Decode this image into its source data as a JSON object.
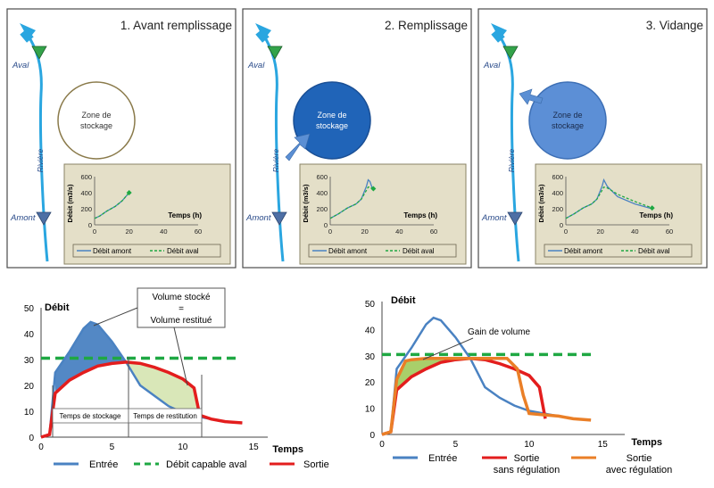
{
  "colors": {
    "river": "#2aa6e0",
    "panel_border": "#4b4b4b",
    "inset_bg": "#e4dfc8",
    "inset_border": "#8a8366",
    "amont_marker": "#4d6fa5",
    "aval_marker": "#33a34a",
    "entree": "#4a82c2",
    "sortie": "#e31d1d",
    "sortie_regulation": "#ea7f27",
    "capable_aval": "#1fa843",
    "fill_blue": "#4a82c2",
    "fill_green": "#a9cf6a",
    "fill_lightgreen": "#d9e7b8",
    "zone_filled": "#2064b8",
    "zone_emptying": "#5c8fd6"
  },
  "panels": [
    {
      "title": "1. Avant remplissage",
      "aval_label": "Aval",
      "amont_label": "Amont",
      "river_label": "Rivière",
      "zone_label": "Zone de stockage",
      "zone_state": "empty",
      "arrow_to_zone": "none",
      "inset": {
        "ylabel": "Débit (m3/s)",
        "xlabel": "Temps (h)",
        "yticks": [
          "0",
          "200",
          "400",
          "600"
        ],
        "xticks": [
          "0",
          "20",
          "40",
          "60"
        ],
        "legend": [
          "Débit amont",
          "Débit aval"
        ]
      }
    },
    {
      "title": "2. Remplissage",
      "aval_label": "Aval",
      "amont_label": "Amont",
      "river_label": "Rivière",
      "zone_label": "Zone de stockage",
      "zone_state": "full",
      "arrow_to_zone": "in",
      "inset": {
        "ylabel": "Débit (m3/s)",
        "xlabel": "Temps (h)",
        "yticks": [
          "0",
          "200",
          "400",
          "600"
        ],
        "xticks": [
          "0",
          "20",
          "40",
          "60"
        ],
        "legend": [
          "Débit amont",
          "Débit aval"
        ]
      }
    },
    {
      "title": "3. Vidange",
      "aval_label": "Aval",
      "amont_label": "Amont",
      "river_label": "Rivière",
      "zone_label": "Zone de stockage",
      "zone_state": "emptying",
      "arrow_to_zone": "out",
      "inset": {
        "ylabel": "Débit (m3/s)",
        "xlabel": "Temps (h)",
        "yticks": [
          "0",
          "200",
          "400",
          "600"
        ],
        "xticks": [
          "0",
          "20",
          "40",
          "60"
        ],
        "legend": [
          "Débit amont",
          "Débit aval"
        ]
      }
    }
  ],
  "bottom_left": {
    "ylabel": "Débit",
    "xlabel": "Temps",
    "yticks": [
      "0",
      "10",
      "20",
      "30",
      "40",
      "50"
    ],
    "xticks": [
      "0",
      "5",
      "10",
      "15"
    ],
    "callout_line1": "Volume stocké",
    "callout_line2": "=",
    "callout_line3": "Volume restitué",
    "stockage_label": "Temps de stockage",
    "restitution_label": "Temps de restitution",
    "legend": [
      "Entrée",
      "Débit capable aval",
      "Sortie"
    ]
  },
  "bottom_right": {
    "ylabel": "Débit",
    "xlabel": "Temps",
    "yticks": [
      "0",
      "10",
      "20",
      "30",
      "40",
      "50"
    ],
    "xticks": [
      "0",
      "5",
      "10",
      "15"
    ],
    "gain_label": "Gain de volume",
    "legend": [
      {
        "line1": "Entrée",
        "line2": ""
      },
      {
        "line1": "Sortie",
        "line2": "sans régulation"
      },
      {
        "line1": "Sortie",
        "line2": "avec régulation"
      }
    ]
  },
  "chart_data": [
    {
      "type": "line",
      "panel": "1. Avant remplissage",
      "xlabel": "Temps (h)",
      "ylabel": "Débit (m3/s)",
      "xlim": [
        0,
        60
      ],
      "ylim": [
        0,
        600
      ],
      "series": [
        {
          "name": "Débit amont",
          "x": [
            0,
            3,
            7,
            12,
            16,
            20
          ],
          "y": [
            80,
            110,
            170,
            230,
            300,
            400
          ]
        },
        {
          "name": "Débit aval",
          "x": [
            0,
            3,
            7,
            12,
            16,
            20
          ],
          "y": [
            80,
            110,
            170,
            230,
            300,
            400
          ]
        }
      ]
    },
    {
      "type": "line",
      "panel": "2. Remplissage",
      "xlabel": "Temps (h)",
      "ylabel": "Débit (m3/s)",
      "xlim": [
        0,
        60
      ],
      "ylim": [
        0,
        600
      ],
      "series": [
        {
          "name": "Débit amont",
          "x": [
            0,
            5,
            10,
            15,
            18,
            21,
            22,
            23,
            24,
            25
          ],
          "y": [
            80,
            140,
            210,
            260,
            320,
            480,
            560,
            540,
            480,
            440
          ]
        },
        {
          "name": "Débit aval",
          "x": [
            0,
            5,
            10,
            15,
            18,
            21,
            22,
            23,
            24,
            25
          ],
          "y": [
            80,
            140,
            210,
            260,
            320,
            430,
            470,
            470,
            460,
            450
          ]
        }
      ]
    },
    {
      "type": "line",
      "panel": "3. Vidange",
      "xlabel": "Temps (h)",
      "ylabel": "Débit (m3/s)",
      "xlim": [
        0,
        60
      ],
      "ylim": [
        0,
        600
      ],
      "series": [
        {
          "name": "Débit amont",
          "x": [
            0,
            5,
            10,
            15,
            18,
            21,
            22,
            24,
            30,
            40,
            50
          ],
          "y": [
            80,
            140,
            210,
            260,
            320,
            480,
            560,
            480,
            350,
            260,
            200
          ]
        },
        {
          "name": "Débit aval",
          "x": [
            0,
            5,
            10,
            15,
            18,
            21,
            22,
            24,
            30,
            40,
            50
          ],
          "y": [
            80,
            140,
            210,
            260,
            320,
            430,
            470,
            460,
            380,
            290,
            210
          ]
        }
      ]
    },
    {
      "type": "line",
      "panel": "bottom-left",
      "xlabel": "Temps",
      "ylabel": "Débit",
      "xlim": [
        0,
        15
      ],
      "ylim": [
        0,
        50
      ],
      "series": [
        {
          "name": "Entrée",
          "x": [
            0,
            0.6,
            1,
            2,
            3,
            3.5,
            4,
            5,
            6,
            7,
            8,
            9,
            10,
            11,
            12,
            13,
            14.2
          ],
          "y": [
            0,
            1,
            25,
            33,
            42,
            44.5,
            43.5,
            37,
            29,
            20,
            16,
            12,
            9.5,
            8,
            7,
            6,
            5.5
          ]
        },
        {
          "name": "Débit capable aval",
          "x": [
            0,
            14
          ],
          "y": [
            30.5,
            30.5
          ]
        },
        {
          "name": "Sortie",
          "x": [
            0,
            0.6,
            1,
            2,
            3,
            4,
            5,
            6,
            7,
            8,
            9,
            10,
            10.8,
            11.2,
            12,
            13,
            14.2
          ],
          "y": [
            0,
            1,
            17,
            22,
            25,
            27.5,
            28.5,
            29,
            28.5,
            27,
            25,
            22.5,
            19,
            8.5,
            7,
            6,
            5.5
          ]
        }
      ]
    },
    {
      "type": "line",
      "panel": "bottom-right",
      "xlabel": "Temps",
      "ylabel": "Débit",
      "xlim": [
        0,
        15
      ],
      "ylim": [
        0,
        50
      ],
      "series": [
        {
          "name": "Entrée",
          "x": [
            0,
            0.6,
            1,
            2,
            3,
            3.5,
            4,
            5,
            6,
            7,
            8,
            9,
            10,
            11,
            12,
            13,
            14.2
          ],
          "y": [
            0,
            1,
            25,
            33,
            42,
            44.5,
            43.5,
            37,
            29,
            18,
            14,
            11,
            9,
            8,
            7,
            6,
            5.5
          ]
        },
        {
          "name": "Sortie sans régulation",
          "x": [
            0,
            0.6,
            1,
            2,
            3,
            4,
            5,
            6,
            7,
            8,
            9,
            10,
            10.7,
            11.1
          ],
          "y": [
            0,
            1,
            17,
            22,
            25,
            27.5,
            28.5,
            29,
            28.5,
            27,
            25,
            22.5,
            18,
            6
          ]
        },
        {
          "name": "Sortie avec régulation",
          "x": [
            0,
            0.6,
            1,
            1.6,
            2,
            3,
            5,
            7,
            8.5,
            9.2,
            9.6,
            10,
            11,
            12,
            13,
            14.2
          ],
          "y": [
            0,
            1,
            21,
            28,
            28.5,
            29,
            29,
            29,
            29,
            25,
            15,
            8,
            7.5,
            7,
            6,
            5.5
          ]
        },
        {
          "name": "Débit capable aval",
          "x": [
            0,
            14.5
          ],
          "y": [
            30.5,
            30.5
          ]
        }
      ]
    }
  ]
}
